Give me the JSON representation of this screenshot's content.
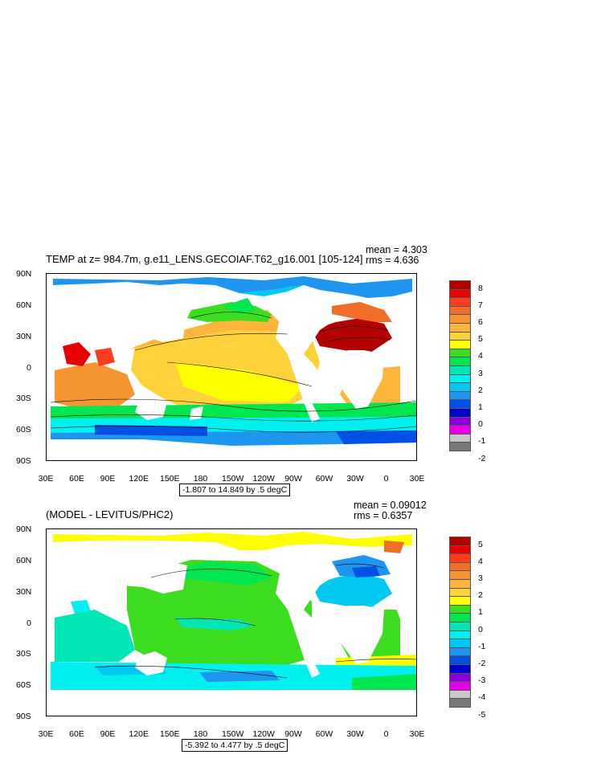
{
  "panels": [
    {
      "id": "model",
      "title": "TEMP at z= 984.7m, g.e11_LENS.GECOIAF.T62_g16.001 [105-124]",
      "mean_label": "mean = 4.303",
      "rms_label": "rms = 4.636",
      "range_label": "-1.807 to 14.849 by .5 degC",
      "colorbar": {
        "labels": [
          "8",
          "7",
          "6",
          "5",
          "4",
          "3",
          "2",
          "1",
          "0",
          "-1",
          "-2"
        ],
        "colors": [
          "#b30000",
          "#e60000",
          "#ff3c1e",
          "#f06e28",
          "#f59632",
          "#ffb43c",
          "#ffd23c",
          "#ffff00",
          "#3cdc1e",
          "#00e650",
          "#00e6b4",
          "#00f0f0",
          "#00c8f0",
          "#1e96f0",
          "#0050e6",
          "#0000c8",
          "#8c00dc",
          "#e600e6",
          "#c8c8c8",
          "#787878"
        ]
      }
    },
    {
      "id": "diff",
      "title": "(MODEL - LEVITUS/PHC2)",
      "mean_label": "mean = 0.09012",
      "rms_label": "rms = 0.6357",
      "range_label": "-5.392 to 4.477 by .5 degC",
      "colorbar": {
        "labels": [
          "5",
          "4",
          "3",
          "2",
          "1",
          "0",
          "-1",
          "-2",
          "-3",
          "-4",
          "-5"
        ],
        "colors": [
          "#b30000",
          "#e60000",
          "#ff3c1e",
          "#f06e28",
          "#f59632",
          "#ffb43c",
          "#ffd23c",
          "#ffff00",
          "#3cdc1e",
          "#00e650",
          "#00e6b4",
          "#00f0f0",
          "#00c8f0",
          "#1e96f0",
          "#0050e6",
          "#0000c8",
          "#8c00dc",
          "#e600e6",
          "#c8c8c8",
          "#787878"
        ]
      }
    }
  ],
  "axes": {
    "lat_labels": [
      "90N",
      "60N",
      "30N",
      "0",
      "30S",
      "60S",
      "90S"
    ],
    "lon_labels": [
      "30E",
      "60E",
      "90E",
      "120E",
      "150E",
      "180",
      "150W",
      "120W",
      "90W",
      "60W",
      "30W",
      "0",
      "30E"
    ]
  }
}
